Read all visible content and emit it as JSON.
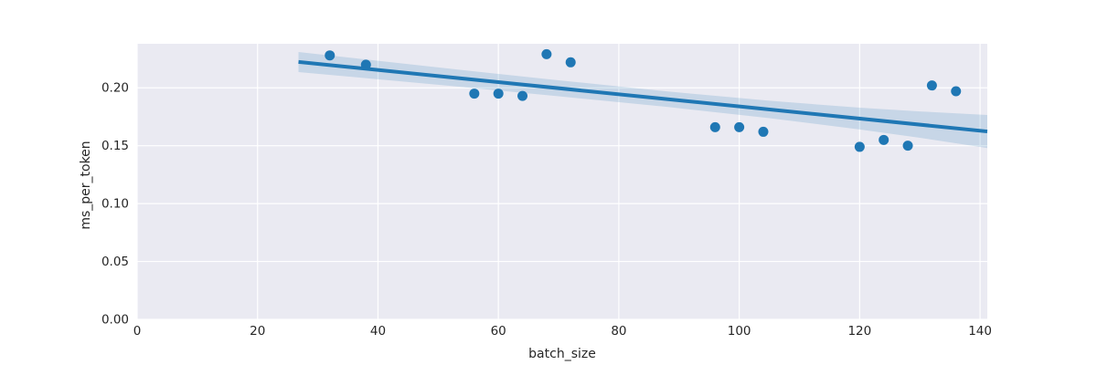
{
  "chart_data": {
    "type": "scatter",
    "title": "",
    "xlabel": "batch_size",
    "ylabel": "ms_per_token",
    "xlim": [
      0,
      141.2
    ],
    "ylim": [
      0,
      0.238
    ],
    "grid": true,
    "legend": "none",
    "x_ticks": [
      0,
      20,
      40,
      60,
      80,
      100,
      120,
      140
    ],
    "x_tick_labels": [
      "0",
      "20",
      "40",
      "60",
      "80",
      "100",
      "120",
      "140"
    ],
    "y_ticks": [
      0.0,
      0.05,
      0.1,
      0.15,
      0.2
    ],
    "y_tick_labels": [
      "0.00",
      "0.05",
      "0.10",
      "0.15",
      "0.20"
    ],
    "points": [
      [
        32,
        0.228
      ],
      [
        38,
        0.22
      ],
      [
        56,
        0.195
      ],
      [
        60,
        0.195
      ],
      [
        64,
        0.193
      ],
      [
        68,
        0.229
      ],
      [
        72,
        0.222
      ],
      [
        96,
        0.166
      ],
      [
        100,
        0.166
      ],
      [
        104,
        0.162
      ],
      [
        120,
        0.149
      ],
      [
        124,
        0.155
      ],
      [
        128,
        0.15
      ],
      [
        132,
        0.202
      ],
      [
        136,
        0.197
      ]
    ],
    "regression_line": {
      "x_start": 26.8,
      "y_start": 0.2223,
      "x_end": 141.2,
      "y_end": 0.1623
    },
    "ci_band": [
      {
        "x": 26.8,
        "lo": 0.2136,
        "hi": 0.2309
      },
      {
        "x": 40,
        "lo": 0.2074,
        "hi": 0.2233
      },
      {
        "x": 55,
        "lo": 0.2002,
        "hi": 0.2148
      },
      {
        "x": 70,
        "lo": 0.1927,
        "hi": 0.2065
      },
      {
        "x": 88,
        "lo": 0.1835,
        "hi": 0.1969
      },
      {
        "x": 105,
        "lo": 0.1738,
        "hi": 0.1888
      },
      {
        "x": 120,
        "lo": 0.164,
        "hi": 0.1828
      },
      {
        "x": 130,
        "lo": 0.1568,
        "hi": 0.1796
      },
      {
        "x": 141.2,
        "lo": 0.148,
        "hi": 0.1765
      }
    ],
    "colors": {
      "figure_bg": "#ffffff",
      "plot_bg": "#eaeaf2",
      "gridline": "#ffffff",
      "accent": "#1f77b4",
      "ci_fill": "rgba(31,119,180,0.17)",
      "tick_text": "#262626"
    },
    "marker_radius": 5.5,
    "line_width": 4
  }
}
